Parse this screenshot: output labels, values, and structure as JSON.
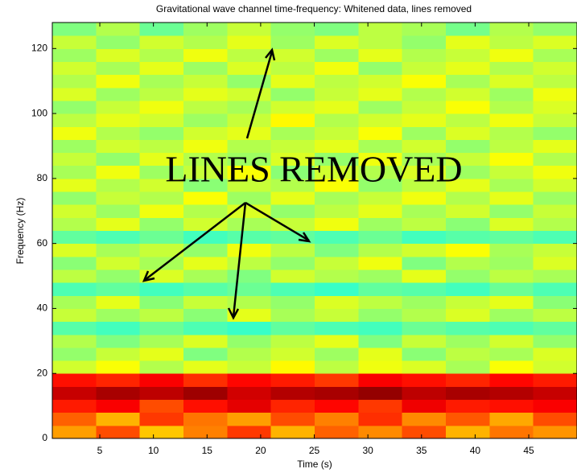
{
  "chart_data": {
    "type": "spectrogram",
    "title": "Gravitational wave channel time-frequency:  Whitened data, lines removed",
    "x_label": "Time (s)",
    "y_label": "Frequency (Hz)",
    "annotation": "LINES REMOVED",
    "xlim": [
      0.57,
      49.5
    ],
    "ylim": [
      0,
      128
    ],
    "xticks": [
      5,
      10,
      15,
      20,
      25,
      30,
      35,
      40,
      45
    ],
    "yticks": [
      0,
      20,
      40,
      60,
      80,
      100,
      120
    ],
    "colormap": "jet",
    "clim": [
      0,
      1
    ],
    "z": [
      [
        0.72,
        0.8,
        0.68,
        0.75,
        0.82,
        0.7,
        0.78,
        0.74,
        0.8,
        0.7,
        0.76,
        0.73
      ],
      [
        0.78,
        0.7,
        0.82,
        0.76,
        0.72,
        0.8,
        0.75,
        0.83,
        0.74,
        0.79,
        0.71,
        0.8
      ],
      [
        0.85,
        0.88,
        0.8,
        0.86,
        0.9,
        0.84,
        0.87,
        0.82,
        0.89,
        0.85,
        0.86,
        0.88
      ],
      [
        0.93,
        0.96,
        0.94,
        0.97,
        0.92,
        0.95,
        0.96,
        0.98,
        0.94,
        0.96,
        0.95,
        0.93
      ],
      [
        0.86,
        0.84,
        0.88,
        0.83,
        0.87,
        0.85,
        0.82,
        0.88,
        0.86,
        0.84,
        0.87,
        0.85
      ],
      [
        0.58,
        0.62,
        0.55,
        0.6,
        0.57,
        0.63,
        0.56,
        0.61,
        0.59,
        0.54,
        0.62,
        0.58
      ],
      [
        0.52,
        0.57,
        0.6,
        0.5,
        0.55,
        0.58,
        0.53,
        0.6,
        0.51,
        0.56,
        0.54,
        0.59
      ],
      [
        0.55,
        0.5,
        0.54,
        0.59,
        0.52,
        0.56,
        0.6,
        0.5,
        0.57,
        0.53,
        0.58,
        0.52
      ],
      [
        0.46,
        0.44,
        0.48,
        0.45,
        0.43,
        0.47,
        0.45,
        0.44,
        0.48,
        0.46,
        0.45,
        0.47
      ],
      [
        0.57,
        0.53,
        0.56,
        0.51,
        0.6,
        0.54,
        0.57,
        0.52,
        0.55,
        0.59,
        0.53,
        0.56
      ],
      [
        0.54,
        0.6,
        0.51,
        0.57,
        0.55,
        0.52,
        0.59,
        0.56,
        0.53,
        0.57,
        0.6,
        0.51
      ],
      [
        0.45,
        0.47,
        0.44,
        0.46,
        0.48,
        0.45,
        0.43,
        0.47,
        0.46,
        0.44,
        0.48,
        0.45
      ],
      [
        0.56,
        0.52,
        0.59,
        0.54,
        0.5,
        0.58,
        0.55,
        0.53,
        0.6,
        0.52,
        0.56,
        0.54
      ],
      [
        0.51,
        0.58,
        0.54,
        0.6,
        0.56,
        0.52,
        0.57,
        0.61,
        0.5,
        0.55,
        0.53,
        0.59
      ],
      [
        0.59,
        0.54,
        0.57,
        0.52,
        0.61,
        0.56,
        0.5,
        0.55,
        0.58,
        0.62,
        0.54,
        0.57
      ],
      [
        0.47,
        0.45,
        0.48,
        0.44,
        0.46,
        0.47,
        0.45,
        0.48,
        0.44,
        0.46,
        0.47,
        0.45
      ],
      [
        0.55,
        0.6,
        0.52,
        0.58,
        0.54,
        0.57,
        0.61,
        0.53,
        0.56,
        0.51,
        0.59,
        0.55
      ],
      [
        0.58,
        0.53,
        0.61,
        0.55,
        0.59,
        0.52,
        0.56,
        0.6,
        0.54,
        0.58,
        0.52,
        0.57
      ],
      [
        0.52,
        0.57,
        0.55,
        0.62,
        0.53,
        0.6,
        0.54,
        0.57,
        0.61,
        0.55,
        0.6,
        0.53
      ],
      [
        0.6,
        0.55,
        0.58,
        0.51,
        0.57,
        0.55,
        0.62,
        0.52,
        0.56,
        0.6,
        0.54,
        0.58
      ],
      [
        0.54,
        0.61,
        0.53,
        0.57,
        0.62,
        0.51,
        0.58,
        0.55,
        0.59,
        0.53,
        0.57,
        0.61
      ],
      [
        0.57,
        0.52,
        0.6,
        0.55,
        0.53,
        0.59,
        0.52,
        0.61,
        0.54,
        0.57,
        0.62,
        0.55
      ],
      [
        0.53,
        0.58,
        0.56,
        0.61,
        0.55,
        0.57,
        0.6,
        0.54,
        0.58,
        0.52,
        0.56,
        0.6
      ],
      [
        0.61,
        0.55,
        0.52,
        0.58,
        0.6,
        0.54,
        0.57,
        0.62,
        0.53,
        0.59,
        0.55,
        0.52
      ],
      [
        0.56,
        0.6,
        0.58,
        0.53,
        0.57,
        0.63,
        0.55,
        0.58,
        0.6,
        0.56,
        0.61,
        0.57
      ],
      [
        0.52,
        0.57,
        0.61,
        0.56,
        0.54,
        0.58,
        0.6,
        0.53,
        0.57,
        0.62,
        0.55,
        0.59
      ],
      [
        0.59,
        0.53,
        0.56,
        0.6,
        0.58,
        0.52,
        0.57,
        0.6,
        0.55,
        0.58,
        0.53,
        0.61
      ],
      [
        0.55,
        0.61,
        0.54,
        0.57,
        0.52,
        0.6,
        0.56,
        0.58,
        0.62,
        0.54,
        0.59,
        0.56
      ],
      [
        0.58,
        0.54,
        0.6,
        0.53,
        0.59,
        0.56,
        0.61,
        0.52,
        0.57,
        0.6,
        0.55,
        0.58
      ],
      [
        0.53,
        0.59,
        0.55,
        0.61,
        0.56,
        0.58,
        0.53,
        0.6,
        0.55,
        0.57,
        0.61,
        0.54
      ],
      [
        0.57,
        0.52,
        0.58,
        0.55,
        0.6,
        0.53,
        0.59,
        0.56,
        0.52,
        0.6,
        0.56,
        0.59
      ],
      [
        0.5,
        0.55,
        0.48,
        0.53,
        0.57,
        0.52,
        0.5,
        0.56,
        0.54,
        0.49,
        0.55,
        0.52
      ]
    ]
  }
}
